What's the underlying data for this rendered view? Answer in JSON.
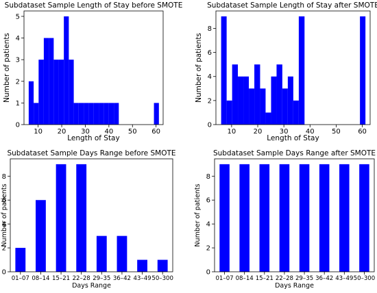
{
  "colors": {
    "bar": "#0000ff",
    "axis": "#000000"
  },
  "chart_data": [
    {
      "type": "bar",
      "title": "Subdataset Sample Length of Stay before SMOTE",
      "xlabel": "Length of Stay",
      "ylabel": "Number of patients",
      "x_ticks": [
        10,
        20,
        30,
        40,
        50,
        60
      ],
      "y_ticks": [
        0,
        1,
        2,
        3,
        4,
        5
      ],
      "xlim": [
        4,
        63
      ],
      "ylim": [
        0,
        5.25
      ],
      "bin_edges": [
        6,
        8.1,
        10.2,
        12.4,
        14.5,
        16.6,
        18.7,
        20.9,
        23,
        25.1,
        27.2,
        29.4,
        31.5,
        33.6,
        35.7,
        37.9,
        40,
        42.1,
        44.2,
        46.4,
        48.5,
        50.6,
        52.7,
        54.9,
        57,
        59.1,
        61.2
      ],
      "values": [
        2,
        1,
        3,
        4,
        4,
        3,
        3,
        5,
        3,
        1,
        1,
        1,
        1,
        1,
        1,
        1,
        1,
        1,
        0,
        0,
        0,
        0,
        0,
        0,
        0,
        1
      ],
      "grid": false
    },
    {
      "type": "bar",
      "title": "Subdataset Sample Length of Stay after SMOTE",
      "xlabel": "Length of Stay",
      "ylabel": "Number of patients",
      "x_ticks": [
        10,
        20,
        30,
        40,
        50,
        60
      ],
      "y_ticks": [
        0,
        2,
        4,
        6,
        8
      ],
      "xlim": [
        4,
        63
      ],
      "ylim": [
        0,
        9.45
      ],
      "bin_edges": [
        6,
        8.1,
        10.2,
        12.4,
        14.5,
        16.6,
        18.7,
        20.9,
        23,
        25.1,
        27.2,
        29.4,
        31.5,
        33.6,
        35.7,
        37.9,
        40,
        42.1,
        44.2,
        46.4,
        48.5,
        50.6,
        52.7,
        54.9,
        57,
        59.1,
        61.2
      ],
      "values": [
        9,
        2,
        5,
        4,
        4,
        3,
        5,
        3,
        1,
        4,
        5,
        3,
        4,
        2,
        9,
        0,
        0,
        0,
        0,
        0,
        0,
        0,
        0,
        0,
        0,
        9
      ],
      "grid": false
    },
    {
      "type": "bar",
      "title": "Subdataset Sample Days Range before SMOTE",
      "xlabel": "Days Range",
      "ylabel": "Number of patients",
      "categories": [
        "01–07",
        "08–14",
        "15–21",
        "22–28",
        "29–35",
        "36–42",
        "43–49",
        "50–300"
      ],
      "values": [
        2,
        6,
        9,
        9,
        3,
        3,
        1,
        1
      ],
      "y_ticks": [
        0,
        2,
        4,
        6,
        8
      ],
      "ylim": [
        0,
        9.45
      ],
      "grid": false
    },
    {
      "type": "bar",
      "title": "Subdataset Sample Days Range after SMOTE",
      "xlabel": "Days Range",
      "ylabel": "Number of patients",
      "categories": [
        "01–07",
        "08–14",
        "15–21",
        "22–28",
        "29–35",
        "36–42",
        "43–49",
        "50–300"
      ],
      "values": [
        9,
        9,
        9,
        9,
        9,
        9,
        9,
        9
      ],
      "y_ticks": [
        0,
        2,
        4,
        6,
        8
      ],
      "ylim": [
        0,
        9.45
      ],
      "grid": false
    }
  ]
}
